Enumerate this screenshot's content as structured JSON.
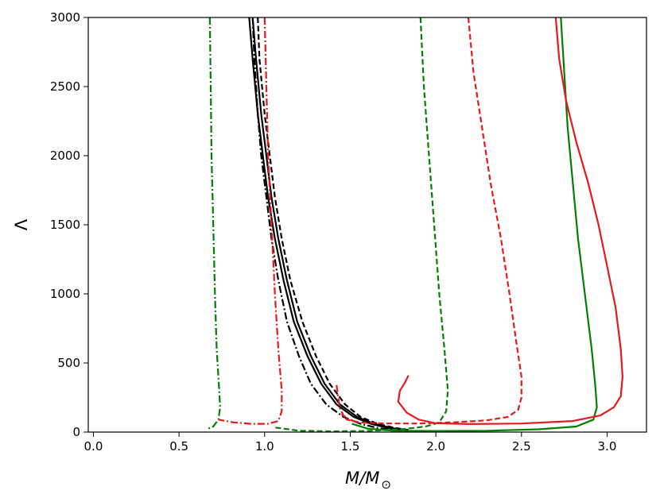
{
  "chart_data": {
    "type": "line",
    "title": "",
    "xlabel": "M/M",
    "xlabel_sub": "⊙",
    "ylabel": "Λ",
    "xlim": [
      -0.03,
      3.23
    ],
    "ylim": [
      0,
      3000
    ],
    "xticks": [
      "0.0",
      "0.5",
      "1.0",
      "1.5",
      "2.0",
      "2.5",
      "3.0"
    ],
    "xtick_values": [
      0.0,
      0.5,
      1.0,
      1.5,
      2.0,
      2.5,
      3.0
    ],
    "yticks": [
      "0",
      "500",
      "1000",
      "1500",
      "2000",
      "2500",
      "3000"
    ],
    "ytick_values": [
      0,
      500,
      1000,
      1500,
      2000,
      2500,
      3000
    ],
    "grid": false,
    "legend": "none",
    "colors": {
      "black": "#000000",
      "green": "#008000",
      "red": "#e41a1c"
    },
    "series": [
      {
        "color": "black",
        "style": "solid",
        "points": [
          [
            0.91,
            3000
          ],
          [
            0.93,
            2700
          ],
          [
            0.96,
            2300
          ],
          [
            0.99,
            2000
          ],
          [
            1.02,
            1700
          ],
          [
            1.06,
            1400
          ],
          [
            1.11,
            1100
          ],
          [
            1.17,
            800
          ],
          [
            1.25,
            550
          ],
          [
            1.33,
            350
          ],
          [
            1.42,
            200
          ],
          [
            1.52,
            110
          ],
          [
            1.62,
            60
          ],
          [
            1.72,
            30
          ],
          [
            1.8,
            15
          ]
        ]
      },
      {
        "color": "black",
        "style": "solid",
        "points": [
          [
            0.93,
            3000
          ],
          [
            0.95,
            2700
          ],
          [
            0.98,
            2300
          ],
          [
            1.01,
            2000
          ],
          [
            1.04,
            1700
          ],
          [
            1.08,
            1400
          ],
          [
            1.13,
            1100
          ],
          [
            1.19,
            800
          ],
          [
            1.27,
            550
          ],
          [
            1.35,
            350
          ],
          [
            1.44,
            200
          ],
          [
            1.54,
            110
          ],
          [
            1.64,
            60
          ],
          [
            1.74,
            30
          ],
          [
            1.82,
            15
          ]
        ]
      },
      {
        "color": "black",
        "style": "dashed",
        "points": [
          [
            0.96,
            3000
          ],
          [
            0.97,
            2700
          ],
          [
            1.0,
            2300
          ],
          [
            1.03,
            2000
          ],
          [
            1.06,
            1700
          ],
          [
            1.1,
            1400
          ],
          [
            1.15,
            1100
          ],
          [
            1.22,
            800
          ],
          [
            1.3,
            550
          ],
          [
            1.38,
            350
          ],
          [
            1.47,
            200
          ],
          [
            1.56,
            110
          ],
          [
            1.66,
            60
          ],
          [
            1.76,
            30
          ],
          [
            1.84,
            15
          ]
        ]
      },
      {
        "color": "black",
        "style": "dashdot",
        "points": [
          [
            0.93,
            3000
          ],
          [
            0.94,
            2700
          ],
          [
            0.96,
            2300
          ],
          [
            0.98,
            2000
          ],
          [
            1.01,
            1700
          ],
          [
            1.04,
            1400
          ],
          [
            1.08,
            1100
          ],
          [
            1.13,
            800
          ],
          [
            1.2,
            550
          ],
          [
            1.27,
            350
          ],
          [
            1.36,
            200
          ],
          [
            1.46,
            110
          ],
          [
            1.56,
            60
          ],
          [
            1.66,
            30
          ],
          [
            1.75,
            15
          ]
        ]
      },
      {
        "color": "green",
        "style": "dashdot",
        "points": [
          [
            0.68,
            3000
          ],
          [
            0.685,
            2500
          ],
          [
            0.69,
            2000
          ],
          [
            0.7,
            1500
          ],
          [
            0.71,
            1000
          ],
          [
            0.72,
            600
          ],
          [
            0.735,
            300
          ],
          [
            0.74,
            180
          ],
          [
            0.73,
            90
          ],
          [
            0.7,
            40
          ],
          [
            0.66,
            20
          ]
        ]
      },
      {
        "color": "red",
        "style": "dashdot",
        "points": [
          [
            1.0,
            3000
          ],
          [
            1.01,
            2500
          ],
          [
            1.02,
            2000
          ],
          [
            1.04,
            1500
          ],
          [
            1.06,
            1000
          ],
          [
            1.08,
            600
          ],
          [
            1.1,
            300
          ],
          [
            1.1,
            150
          ],
          [
            1.08,
            80
          ],
          [
            1.02,
            60
          ],
          [
            0.92,
            60
          ],
          [
            0.82,
            70
          ],
          [
            0.73,
            90
          ]
        ]
      },
      {
        "color": "red",
        "style": "dashdot",
        "points": [
          [
            1.42,
            340
          ],
          [
            1.43,
            250
          ],
          [
            1.44,
            170
          ],
          [
            1.46,
            120
          ],
          [
            1.49,
            90
          ],
          [
            1.55,
            70
          ]
        ]
      },
      {
        "color": "green",
        "style": "dashed",
        "points": [
          [
            1.91,
            3000
          ],
          [
            1.93,
            2500
          ],
          [
            1.96,
            2000
          ],
          [
            1.99,
            1500
          ],
          [
            2.02,
            1000
          ],
          [
            2.05,
            600
          ],
          [
            2.07,
            300
          ],
          [
            2.06,
            150
          ],
          [
            2.02,
            70
          ],
          [
            1.94,
            40
          ],
          [
            1.8,
            20
          ],
          [
            1.6,
            8
          ],
          [
            1.4,
            5
          ],
          [
            1.2,
            10
          ],
          [
            1.05,
            35
          ]
        ]
      },
      {
        "color": "red",
        "style": "dashed",
        "points": [
          [
            2.19,
            3000
          ],
          [
            2.22,
            2600
          ],
          [
            2.27,
            2200
          ],
          [
            2.32,
            1800
          ],
          [
            2.38,
            1400
          ],
          [
            2.43,
            1000
          ],
          [
            2.47,
            650
          ],
          [
            2.5,
            400
          ],
          [
            2.5,
            250
          ],
          [
            2.48,
            160
          ],
          [
            2.42,
            110
          ],
          [
            2.3,
            85
          ],
          [
            2.1,
            70
          ],
          [
            1.9,
            62
          ],
          [
            1.7,
            62
          ],
          [
            1.55,
            70
          ],
          [
            1.48,
            90
          ],
          [
            1.45,
            130
          ]
        ]
      },
      {
        "color": "green",
        "style": "solid",
        "points": [
          [
            2.73,
            3000
          ],
          [
            2.75,
            2600
          ],
          [
            2.77,
            2200
          ],
          [
            2.8,
            1800
          ],
          [
            2.83,
            1400
          ],
          [
            2.87,
            1000
          ],
          [
            2.91,
            600
          ],
          [
            2.93,
            350
          ],
          [
            2.94,
            180
          ],
          [
            2.92,
            90
          ],
          [
            2.82,
            40
          ],
          [
            2.6,
            20
          ],
          [
            2.3,
            10
          ],
          [
            2.0,
            8
          ],
          [
            1.75,
            10
          ],
          [
            1.6,
            25
          ],
          [
            1.51,
            60
          ]
        ]
      },
      {
        "color": "red",
        "style": "solid",
        "points": [
          [
            2.7,
            3000
          ],
          [
            2.72,
            2700
          ],
          [
            2.76,
            2400
          ],
          [
            2.82,
            2100
          ],
          [
            2.89,
            1800
          ],
          [
            2.95,
            1500
          ],
          [
            3.0,
            1200
          ],
          [
            3.05,
            900
          ],
          [
            3.08,
            600
          ],
          [
            3.09,
            400
          ],
          [
            3.08,
            260
          ],
          [
            3.04,
            180
          ],
          [
            2.96,
            120
          ],
          [
            2.8,
            80
          ],
          [
            2.5,
            62
          ],
          [
            2.2,
            58
          ],
          [
            2.0,
            64
          ],
          [
            1.9,
            90
          ],
          [
            1.83,
            140
          ],
          [
            1.78,
            220
          ],
          [
            1.79,
            300
          ],
          [
            1.82,
            360
          ],
          [
            1.84,
            410
          ]
        ]
      }
    ]
  }
}
